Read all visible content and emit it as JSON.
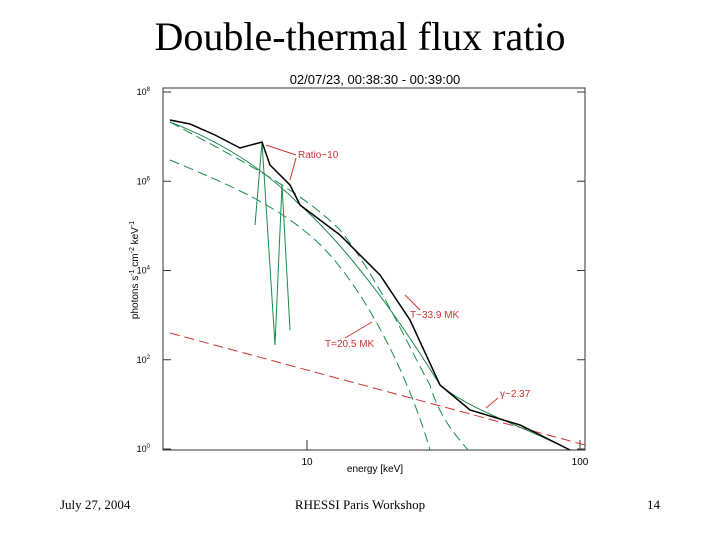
{
  "slide": {
    "title": "Double-thermal flux ratio",
    "plot": {
      "title": "02/07/23, 00:38:30 - 00:39:00",
      "x_label": "energy [keV]",
      "y_label": [
        "photons s",
        "-1",
        " cm",
        "-2",
        " keV",
        "-1"
      ],
      "yticks": [
        [
          "10",
          "8"
        ],
        [
          "10",
          "6"
        ],
        [
          "10",
          "4"
        ],
        [
          "10",
          "2"
        ],
        [
          "10",
          "0"
        ]
      ],
      "xticks": [
        "10",
        "100"
      ],
      "annotations": [
        "Ratio~10",
        "T~33.9 MK",
        "T=20.5 MK",
        "γ~2.37"
      ]
    },
    "footer": {
      "date": "July 27, 2004",
      "event": "RHESSI Paris Workshop",
      "page": "14"
    }
  }
}
